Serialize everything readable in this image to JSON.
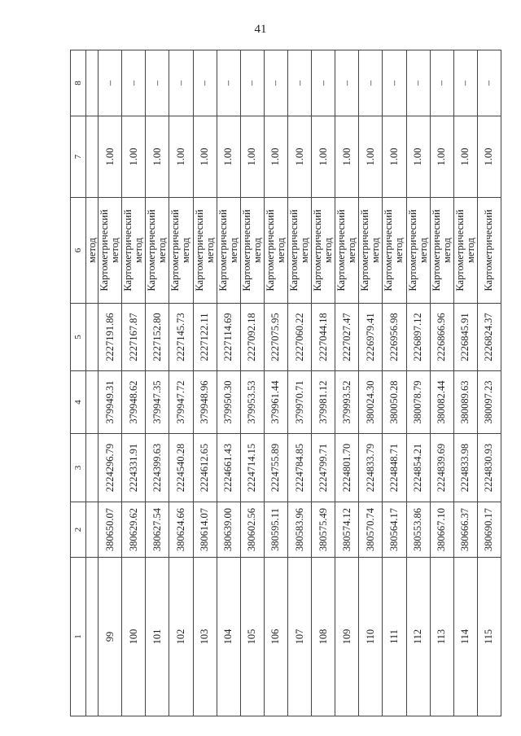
{
  "page_number": "41",
  "headers": [
    "1",
    "2",
    "3",
    "4",
    "5",
    "6",
    "7",
    "8"
  ],
  "continued_row": {
    "c6": "метод"
  },
  "method_line1": "Картометрический",
  "method_line2": "метод",
  "rows": [
    {
      "n": "99",
      "x1": "380650.07",
      "y1": "2224296.79",
      "x2": "379949.31",
      "y2": "2227191.86",
      "acc": "1.00",
      "c8": "–"
    },
    {
      "n": "100",
      "x1": "380629.62",
      "y1": "2224331.91",
      "x2": "379948.62",
      "y2": "2227167.87",
      "acc": "1.00",
      "c8": "–"
    },
    {
      "n": "101",
      "x1": "380627.54",
      "y1": "2224399.63",
      "x2": "379947.35",
      "y2": "2227152.80",
      "acc": "1.00",
      "c8": "–"
    },
    {
      "n": "102",
      "x1": "380624.66",
      "y1": "2224540.28",
      "x2": "379947.72",
      "y2": "2227145.73",
      "acc": "1.00",
      "c8": "–"
    },
    {
      "n": "103",
      "x1": "380614.07",
      "y1": "2224612.65",
      "x2": "379948.96",
      "y2": "2227122.11",
      "acc": "1.00",
      "c8": "–"
    },
    {
      "n": "104",
      "x1": "380639.00",
      "y1": "2224661.43",
      "x2": "379950.30",
      "y2": "2227114.69",
      "acc": "1.00",
      "c8": "–"
    },
    {
      "n": "105",
      "x1": "380602.56",
      "y1": "2224714.15",
      "x2": "379953.53",
      "y2": "2227092.18",
      "acc": "1.00",
      "c8": "–"
    },
    {
      "n": "106",
      "x1": "380595.11",
      "y1": "2224755.89",
      "x2": "379961.44",
      "y2": "2227075.95",
      "acc": "1.00",
      "c8": "–"
    },
    {
      "n": "107",
      "x1": "380583.96",
      "y1": "2224784.85",
      "x2": "379970.71",
      "y2": "2227060.22",
      "acc": "1.00",
      "c8": "–"
    },
    {
      "n": "108",
      "x1": "380575.49",
      "y1": "2224799.71",
      "x2": "379981.12",
      "y2": "2227044.18",
      "acc": "1.00",
      "c8": "–"
    },
    {
      "n": "109",
      "x1": "380574.12",
      "y1": "2224801.70",
      "x2": "379993.52",
      "y2": "2227027.47",
      "acc": "1.00",
      "c8": "–"
    },
    {
      "n": "110",
      "x1": "380570.74",
      "y1": "2224833.79",
      "x2": "380024.30",
      "y2": "2226979.41",
      "acc": "1.00",
      "c8": "–"
    },
    {
      "n": "111",
      "x1": "380564.17",
      "y1": "2224848.71",
      "x2": "380050.28",
      "y2": "2226956.98",
      "acc": "1.00",
      "c8": "–"
    },
    {
      "n": "112",
      "x1": "380553.86",
      "y1": "2224854.21",
      "x2": "380078.79",
      "y2": "2226897.12",
      "acc": "1.00",
      "c8": "–"
    },
    {
      "n": "113",
      "x1": "380667.10",
      "y1": "2224839.69",
      "x2": "380082.44",
      "y2": "2226866.96",
      "acc": "1.00",
      "c8": "–"
    },
    {
      "n": "114",
      "x1": "380666.37",
      "y1": "2224833.98",
      "x2": "380089.63",
      "y2": "2226845.91",
      "acc": "1.00",
      "c8": "–"
    },
    {
      "n": "115",
      "x1": "380690.17",
      "y1": "2224830.93",
      "x2": "380097.23",
      "y2": "2226824.37",
      "acc": "1.00",
      "c8": "–",
      "cut": true
    }
  ]
}
